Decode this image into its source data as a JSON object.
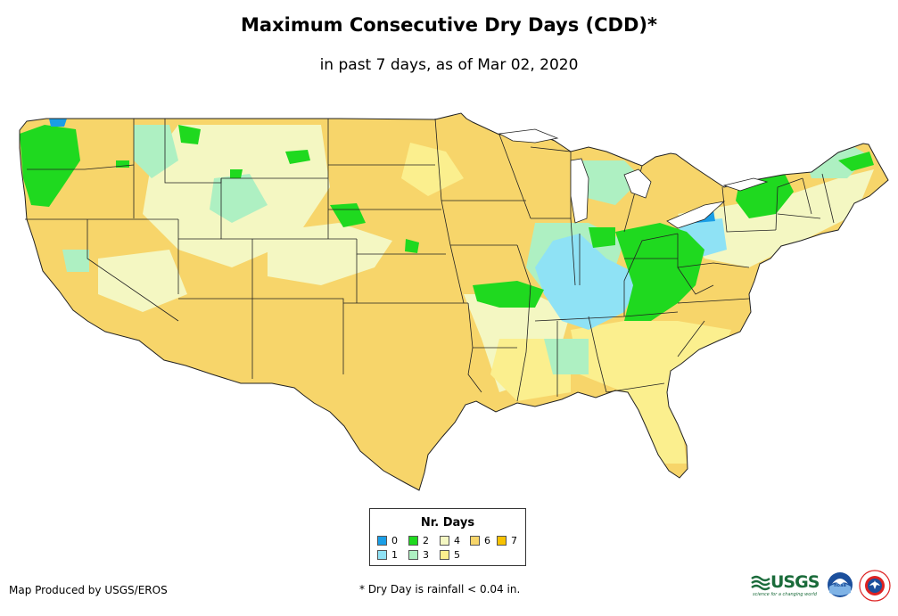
{
  "title": "Maximum Consecutive Dry Days (CDD)*",
  "subtitle": "in past 7 days, as of Mar 02, 2020",
  "legend": {
    "title": "Nr. Days",
    "items": [
      {
        "label": "0",
        "color": "#1a9ee6"
      },
      {
        "label": "1",
        "color": "#8fe2f5"
      },
      {
        "label": "2",
        "color": "#1fd91f"
      },
      {
        "label": "3",
        "color": "#aef0c2"
      },
      {
        "label": "4",
        "color": "#f4f7c2"
      },
      {
        "label": "5",
        "color": "#fbef8e"
      },
      {
        "label": "6",
        "color": "#f7d56a"
      },
      {
        "label": "7",
        "color": "#f7c200"
      }
    ]
  },
  "credit": "Map Produced by USGS/EROS",
  "footnote": "* Dry Day is rainfall < 0.04 in.",
  "logos": {
    "usgs_text": "USGS",
    "usgs_tagline": "science for a changing world",
    "noaa_text": "noaa",
    "nws_text": "NATIONAL WEATHER SERVICE"
  }
}
